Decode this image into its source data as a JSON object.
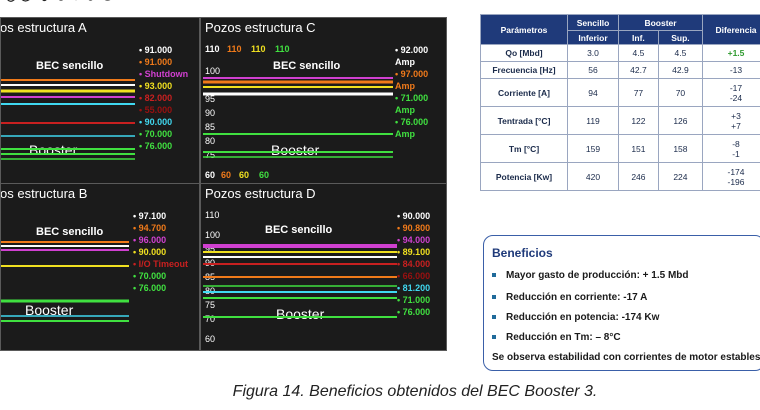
{
  "panels": {
    "A": {
      "title": "os estructura A",
      "bec": "BEC sencillo",
      "booster": "Booster",
      "legend": [
        {
          "text": "• 91.000",
          "color": "#ffffff"
        },
        {
          "text": "• 91.000",
          "color": "#f07a1a"
        },
        {
          "text": "• Shutdown",
          "color": "#d040d0"
        },
        {
          "text": "• 93.000",
          "color": "#f0e020"
        },
        {
          "text": "• 82.000",
          "color": "#c82020"
        },
        {
          "text": "• 55.000",
          "color": "#9a1010"
        },
        {
          "text": "• 90.000",
          "color": "#40d8f0"
        },
        {
          "text": "• 70.000",
          "color": "#40e040"
        },
        {
          "text": "• 76.000",
          "color": "#40e040"
        }
      ]
    },
    "B": {
      "title": "os estructura B",
      "bec": "BEC sencillo",
      "booster": "Booster",
      "legend": [
        {
          "text": "• 97.100",
          "color": "#ffffff"
        },
        {
          "text": "• 94.700",
          "color": "#f07a1a"
        },
        {
          "text": "• 96.000",
          "color": "#d040d0"
        },
        {
          "text": "• 90.000",
          "color": "#f0e020"
        },
        {
          "text": "• I/O Timeout",
          "color": "#c82020"
        },
        {
          "text": "• 70.000",
          "color": "#40e040"
        },
        {
          "text": "• 76.000",
          "color": "#40e040"
        }
      ]
    },
    "C": {
      "title": "Pozos estructura C",
      "bec": "BEC sencillo",
      "booster": "Booster",
      "top_numbers": [
        {
          "text": "110",
          "color": "#ffffff"
        },
        {
          "text": "110",
          "color": "#f07a1a"
        },
        {
          "text": "110",
          "color": "#f0e020"
        },
        {
          "text": "110",
          "color": "#40e040"
        }
      ],
      "yticks": [
        "100",
        "95",
        "90",
        "85",
        "80",
        "75"
      ],
      "bottom_numbers": [
        {
          "text": "60",
          "color": "#ffffff"
        },
        {
          "text": "60",
          "color": "#f07a1a"
        },
        {
          "text": "60",
          "color": "#f0e020"
        },
        {
          "text": "60",
          "color": "#40e040"
        }
      ],
      "legend": [
        {
          "text": "• 92.000",
          "color": "#ffffff"
        },
        {
          "text": "Amp",
          "color": "#ffffff"
        },
        {
          "text": "• 97.000",
          "color": "#f07a1a"
        },
        {
          "text": "Amp",
          "color": "#f07a1a"
        },
        {
          "text": "• 71.000",
          "color": "#40e040"
        },
        {
          "text": "Amp",
          "color": "#40e040"
        },
        {
          "text": "• 76.000",
          "color": "#40e040"
        },
        {
          "text": "Amp",
          "color": "#40e040"
        }
      ]
    },
    "D": {
      "title": "Pozos estructura D",
      "bec": "BEC sencillo",
      "booster": "Booster",
      "yticks": [
        "110",
        "100",
        "95",
        "90",
        "85",
        "80",
        "75",
        "70",
        "60"
      ],
      "legend": [
        {
          "text": "• 90.000",
          "color": "#ffffff"
        },
        {
          "text": "• 90.800",
          "color": "#f07a1a"
        },
        {
          "text": "• 94.000",
          "color": "#d040d0"
        },
        {
          "text": "• 89.100",
          "color": "#f0e020"
        },
        {
          "text": "• 84.000",
          "color": "#c82020"
        },
        {
          "text": "• 66.000",
          "color": "#9a1010"
        },
        {
          "text": "• 81.200",
          "color": "#40d8f0"
        },
        {
          "text": "• 71.000",
          "color": "#40e040"
        },
        {
          "text": "• 76.000",
          "color": "#40e040"
        }
      ]
    }
  },
  "table": {
    "headers": {
      "param": "Parámetros",
      "sencillo": "Sencillo",
      "booster": "Booster",
      "diff": "Diferencia",
      "inferior": "Inferior",
      "inf": "Inf.",
      "sup": "Sup."
    },
    "rows": [
      {
        "name": "Qo [Mbd]",
        "sencillo": "3.0",
        "inf": "4.5",
        "sup": "4.5",
        "diff": [
          "+1.5"
        ],
        "positive": true
      },
      {
        "name": "Frecuencia [Hz]",
        "sencillo": "56",
        "inf": "42.7",
        "sup": "42.9",
        "diff": [
          "-13"
        ]
      },
      {
        "name": "Corriente [A]",
        "sencillo": "94",
        "inf": "77",
        "sup": "70",
        "diff": [
          "-17",
          "-24"
        ]
      },
      {
        "name": "Tentrada [°C]",
        "sencillo": "119",
        "inf": "122",
        "sup": "126",
        "diff": [
          "+3",
          "+7"
        ]
      },
      {
        "name": "Tm [°C]",
        "sencillo": "159",
        "inf": "151",
        "sup": "158",
        "diff": [
          "-8",
          "-1"
        ]
      },
      {
        "name": "Potencia [Kw]",
        "sencillo": "420",
        "inf": "246",
        "sup": "224",
        "diff": [
          "-174",
          "-196"
        ]
      }
    ]
  },
  "benefits": {
    "title": "Beneficios",
    "items": [
      "Mayor gasto de producción:  + 1.5 Mbd",
      "Reducción en corriente:  -17 A",
      "Reducción en potencia:  -174 Kw",
      "Reducción en Tm:  – 8°C"
    ],
    "summary": "Se observa estabilidad con corrientes de motor estables"
  },
  "caption": "Figura 14. Beneficios obtenidos  del  BEC Booster 3."
}
